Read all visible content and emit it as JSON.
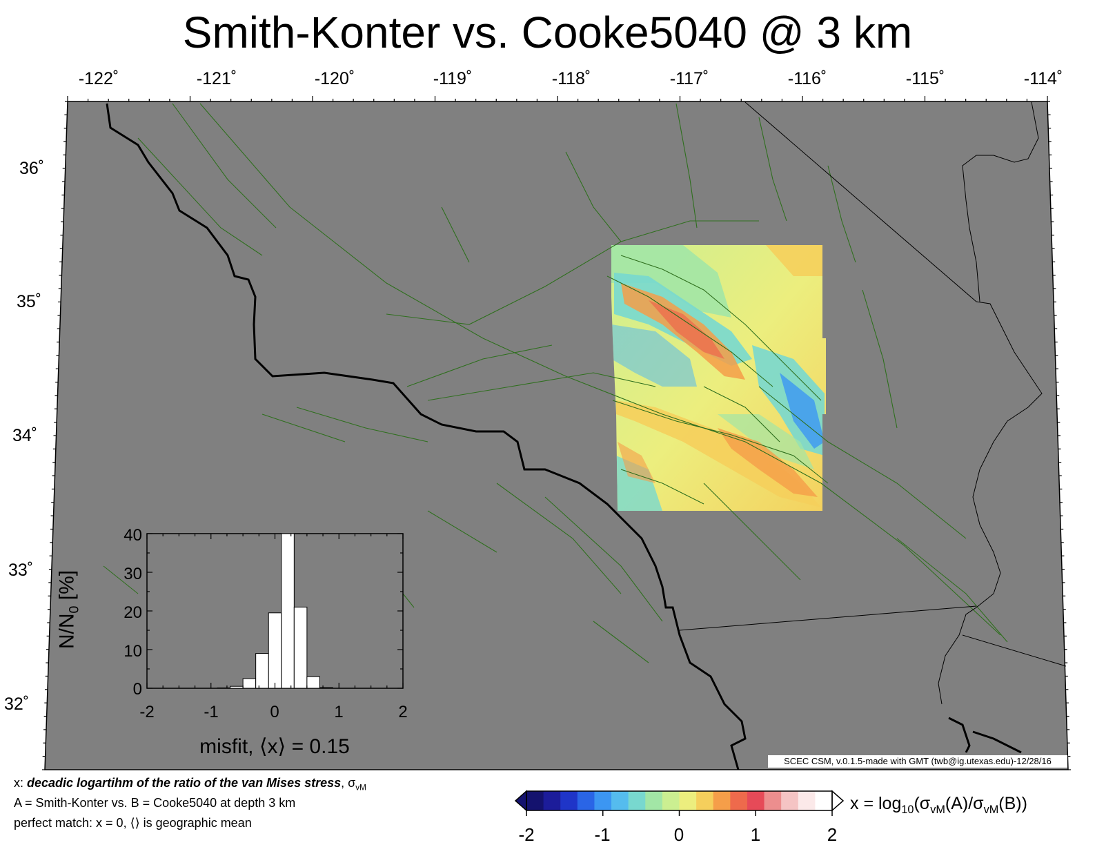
{
  "title": "Smith-Konter vs. Cooke5040 @ 3 km",
  "lon_ticks": [
    "-122˚",
    "-121˚",
    "-120˚",
    "-119˚",
    "-118˚",
    "-117˚",
    "-116˚",
    "-115˚",
    "-114˚"
  ],
  "lat_ticks": [
    "36˚",
    "35˚",
    "34˚",
    "33˚",
    "32˚"
  ],
  "credit": "SCEC CSM, v.0.1.5-made with GMT (twb@ig.utexas.edu)-12/28/16",
  "notes": {
    "line1_prefix": "x: ",
    "line1_bold": "decadic logartihm of the ratio of the van Mises stress",
    "line1_suffix": ", σ",
    "line1_sub": "vM",
    "line2": "A = Smith-Konter vs.  B = Cooke5040 at depth 3 km",
    "line3": "perfect match: x = 0, ⟨⟩ is geographic mean"
  },
  "colorbar": {
    "label_prefix": "x = log",
    "label_sub10": "10",
    "label_mid1": "(σ",
    "label_sub_vm1": "vM",
    "label_mid2": "(A)/σ",
    "label_sub_vm2": "vM",
    "label_end": "(B))",
    "ticks": [
      "-2",
      "-1",
      "0",
      "1",
      "2"
    ],
    "range": [
      -2,
      2
    ],
    "colors": [
      "#14126e",
      "#1c1c9a",
      "#1f35c8",
      "#2a65e6",
      "#3c96f2",
      "#55bcee",
      "#78d8cf",
      "#a2e6a6",
      "#cbef91",
      "#ecee7e",
      "#f5cf5c",
      "#f59e49",
      "#ee6a4c",
      "#e64a58",
      "#ec8e8e",
      "#f5c4c4",
      "#fbe9e9",
      "#ffffff"
    ]
  },
  "histogram": {
    "ylabel_main": "N/N",
    "ylabel_sub": "0",
    "ylabel_end": " [%]",
    "yticks": [
      "40",
      "30",
      "20",
      "10",
      "0"
    ],
    "xticks": [
      "-2",
      "-1",
      "0",
      "1",
      "2"
    ],
    "xlabel": "misfit, ⟨x⟩ = 0.15",
    "bins": [
      {
        "x0": -0.9,
        "x1": -0.7,
        "value": 0.1
      },
      {
        "x0": -0.7,
        "x1": -0.5,
        "value": 0.5
      },
      {
        "x0": -0.5,
        "x1": -0.3,
        "value": 2.5
      },
      {
        "x0": -0.3,
        "x1": -0.1,
        "value": 9
      },
      {
        "x0": -0.1,
        "x1": 0.1,
        "value": 19.5
      },
      {
        "x0": 0.1,
        "x1": 0.3,
        "value": 40
      },
      {
        "x0": 0.3,
        "x1": 0.5,
        "value": 21
      },
      {
        "x0": 0.5,
        "x1": 0.7,
        "value": 3
      },
      {
        "x0": 0.7,
        "x1": 0.9,
        "value": 0.2
      }
    ],
    "xlim": [
      -2,
      2
    ],
    "ylim": [
      0,
      40
    ]
  },
  "map_colors": {
    "background": "#808080",
    "faults": "#2f6f1e",
    "coast": "#000000"
  }
}
